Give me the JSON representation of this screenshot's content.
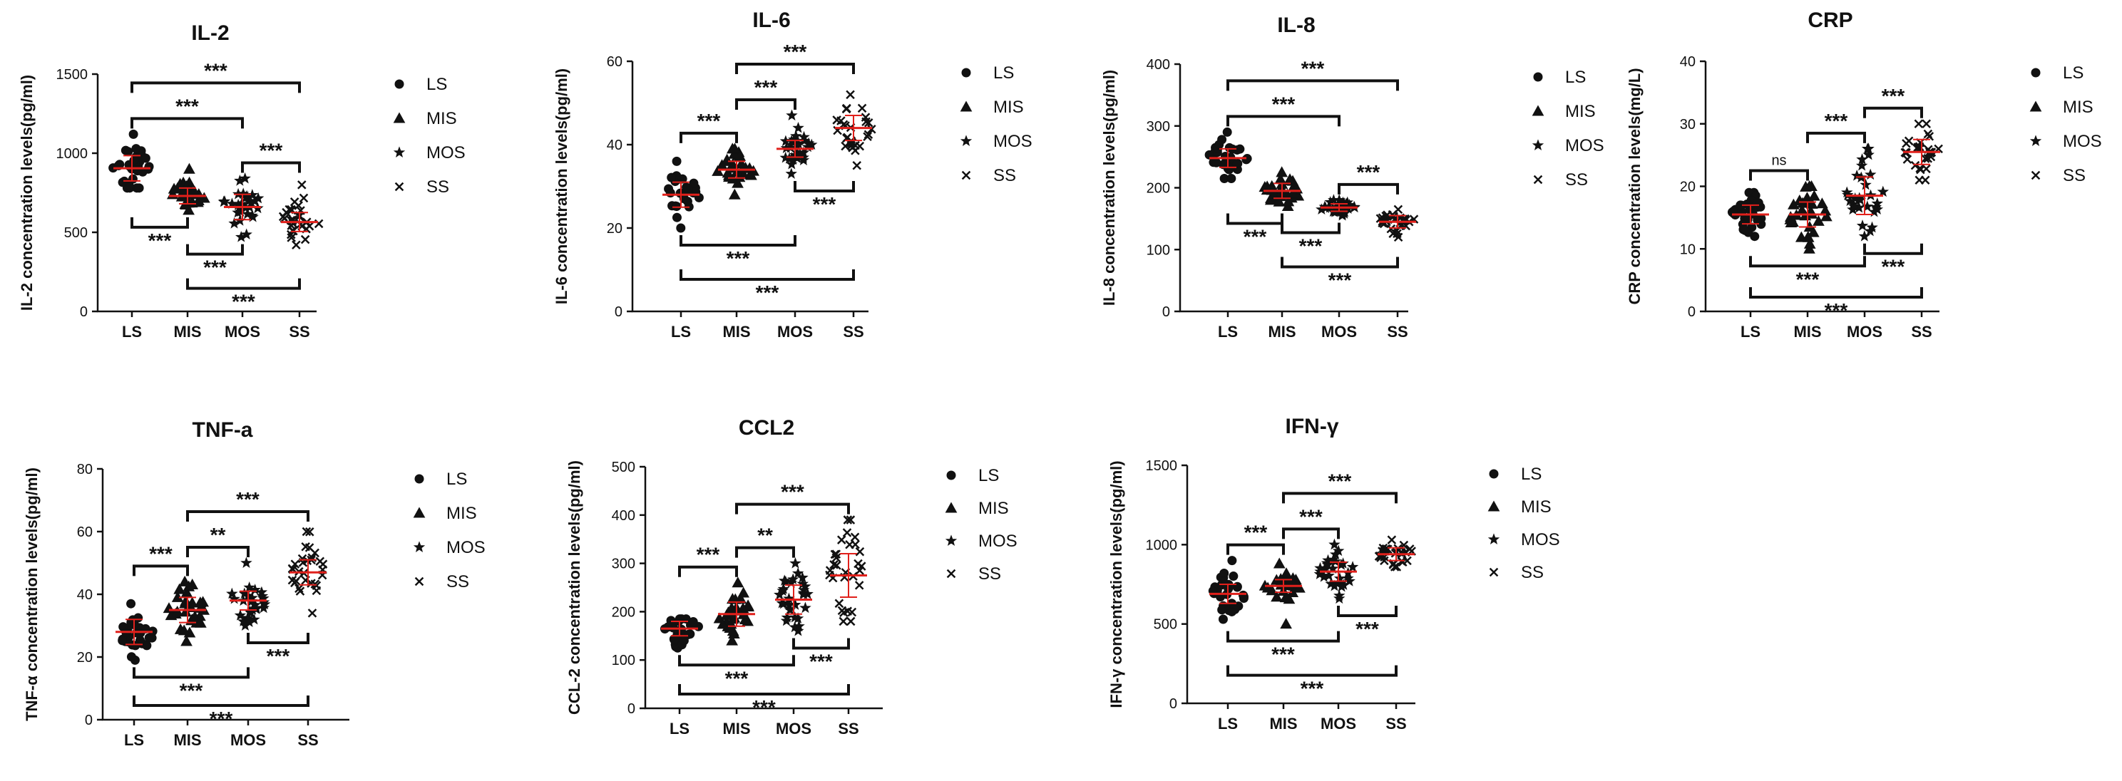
{
  "legend_labels": [
    "LS",
    "MIS",
    "MOS",
    "SS"
  ],
  "colors": {
    "points": "#111111",
    "mean": "#e0201b"
  },
  "chart_data": [
    {
      "type": "scatter",
      "title": "IL-2",
      "ylabel": "IL-2 concentration levels(pg/ml)",
      "categories": [
        "LS",
        "MIS",
        "MOS",
        "SS"
      ],
      "ylim": [
        0,
        1500
      ],
      "yticks": [
        0,
        500,
        1000,
        1500
      ],
      "markers": [
        "circle",
        "triangle",
        "star",
        "cross"
      ],
      "series": [
        {
          "name": "LS",
          "mean": 905,
          "sd": 80,
          "n": 30,
          "min": 780,
          "max": 1120
        },
        {
          "name": "MIS",
          "mean": 730,
          "sd": 50,
          "n": 30,
          "min": 640,
          "max": 900
        },
        {
          "name": "MOS",
          "mean": 660,
          "sd": 80,
          "n": 30,
          "min": 470,
          "max": 840
        },
        {
          "name": "SS",
          "mean": 565,
          "sd": 60,
          "n": 30,
          "min": 420,
          "max": 800
        }
      ],
      "comparisons": [
        {
          "from": 0,
          "to": 3,
          "label": "***",
          "side": "top"
        },
        {
          "from": 0,
          "to": 2,
          "label": "***",
          "side": "top"
        },
        {
          "from": 2,
          "to": 3,
          "label": "***",
          "side": "top"
        },
        {
          "from": 0,
          "to": 1,
          "label": "***",
          "side": "bottom"
        },
        {
          "from": 1,
          "to": 2,
          "label": "***",
          "side": "bottom"
        },
        {
          "from": 1,
          "to": 3,
          "label": "***",
          "side": "bottom"
        }
      ]
    },
    {
      "type": "scatter",
      "title": "IL-6",
      "ylabel": "IL-6 concentration levels(pg/ml)",
      "categories": [
        "LS",
        "MIS",
        "MOS",
        "SS"
      ],
      "ylim": [
        0,
        60
      ],
      "yticks": [
        0,
        20,
        40,
        60
      ],
      "markers": [
        "circle",
        "triangle",
        "star",
        "cross"
      ],
      "series": [
        {
          "name": "LS",
          "mean": 28,
          "sd": 3,
          "n": 30,
          "min": 20,
          "max": 36
        },
        {
          "name": "MIS",
          "mean": 34,
          "sd": 2,
          "n": 30,
          "min": 28,
          "max": 39
        },
        {
          "name": "MOS",
          "mean": 39,
          "sd": 2,
          "n": 30,
          "min": 33,
          "max": 47
        },
        {
          "name": "SS",
          "mean": 44,
          "sd": 3,
          "n": 30,
          "min": 35,
          "max": 52
        }
      ],
      "comparisons": [
        {
          "from": 0,
          "to": 1,
          "label": "***",
          "side": "top"
        },
        {
          "from": 1,
          "to": 2,
          "label": "***",
          "side": "top"
        },
        {
          "from": 1,
          "to": 3,
          "label": "***",
          "side": "top"
        },
        {
          "from": 2,
          "to": 3,
          "label": "***",
          "side": "bottom"
        },
        {
          "from": 0,
          "to": 2,
          "label": "***",
          "side": "bottom"
        },
        {
          "from": 0,
          "to": 3,
          "label": "***",
          "side": "bottom"
        }
      ]
    },
    {
      "type": "scatter",
      "title": "IL-8",
      "ylabel": "IL-8 concentration levels(pg/ml)",
      "categories": [
        "LS",
        "MIS",
        "MOS",
        "SS"
      ],
      "ylim": [
        0,
        400
      ],
      "yticks": [
        0,
        100,
        200,
        300,
        400
      ],
      "markers": [
        "circle",
        "triangle",
        "star",
        "cross"
      ],
      "series": [
        {
          "name": "LS",
          "mean": 248,
          "sd": 15,
          "n": 30,
          "min": 215,
          "max": 290
        },
        {
          "name": "MIS",
          "mean": 195,
          "sd": 12,
          "n": 30,
          "min": 170,
          "max": 225
        },
        {
          "name": "MOS",
          "mean": 168,
          "sd": 6,
          "n": 30,
          "min": 155,
          "max": 180
        },
        {
          "name": "SS",
          "mean": 145,
          "sd": 10,
          "n": 30,
          "min": 120,
          "max": 165
        }
      ],
      "comparisons": [
        {
          "from": 0,
          "to": 3,
          "label": "***",
          "side": "top"
        },
        {
          "from": 0,
          "to": 2,
          "label": "***",
          "side": "top"
        },
        {
          "from": 2,
          "to": 3,
          "label": "***",
          "side": "top"
        },
        {
          "from": 0,
          "to": 1,
          "label": "***",
          "side": "bottom"
        },
        {
          "from": 1,
          "to": 2,
          "label": "***",
          "side": "bottom"
        },
        {
          "from": 1,
          "to": 3,
          "label": "***",
          "side": "bottom"
        }
      ]
    },
    {
      "type": "scatter",
      "title": "CRP",
      "ylabel": "CRP concentration levels(mg/L)",
      "categories": [
        "LS",
        "MIS",
        "MOS",
        "SS"
      ],
      "ylim": [
        0,
        40
      ],
      "yticks": [
        0,
        10,
        20,
        30,
        40
      ],
      "markers": [
        "circle",
        "triangle",
        "star",
        "cross"
      ],
      "series": [
        {
          "name": "LS",
          "mean": 15.5,
          "sd": 1.5,
          "n": 30,
          "min": 12,
          "max": 19
        },
        {
          "name": "MIS",
          "mean": 15.5,
          "sd": 2,
          "n": 30,
          "min": 10,
          "max": 20
        },
        {
          "name": "MOS",
          "mean": 18.5,
          "sd": 3,
          "n": 30,
          "min": 12,
          "max": 26
        },
        {
          "name": "SS",
          "mean": 25.5,
          "sd": 2,
          "n": 30,
          "min": 21,
          "max": 30
        }
      ],
      "comparisons": [
        {
          "from": 0,
          "to": 1,
          "label": "ns",
          "side": "top"
        },
        {
          "from": 1,
          "to": 2,
          "label": "***",
          "side": "top"
        },
        {
          "from": 2,
          "to": 3,
          "label": "***",
          "side": "top"
        },
        {
          "from": 0,
          "to": 2,
          "label": "***",
          "side": "bottom"
        },
        {
          "from": 2,
          "to": 3,
          "label": "***",
          "side": "bottom"
        },
        {
          "from": 0,
          "to": 3,
          "label": "***",
          "side": "bottom"
        }
      ]
    },
    {
      "type": "scatter",
      "title": "TNF-a",
      "ylabel": "TNF-α concentration levels(pg/ml)",
      "categories": [
        "LS",
        "MIS",
        "MOS",
        "SS"
      ],
      "ylim": [
        0,
        80
      ],
      "yticks": [
        0,
        20,
        40,
        60,
        80
      ],
      "markers": [
        "circle",
        "triangle",
        "star",
        "cross"
      ],
      "series": [
        {
          "name": "LS",
          "mean": 28,
          "sd": 4,
          "n": 30,
          "min": 19,
          "max": 37
        },
        {
          "name": "MIS",
          "mean": 35,
          "sd": 4,
          "n": 30,
          "min": 25,
          "max": 44
        },
        {
          "name": "MOS",
          "mean": 38,
          "sd": 3,
          "n": 30,
          "min": 30,
          "max": 50
        },
        {
          "name": "SS",
          "mean": 47,
          "sd": 4,
          "n": 30,
          "min": 34,
          "max": 60
        }
      ],
      "comparisons": [
        {
          "from": 0,
          "to": 1,
          "label": "***",
          "side": "top"
        },
        {
          "from": 1,
          "to": 2,
          "label": "**",
          "side": "top"
        },
        {
          "from": 1,
          "to": 3,
          "label": "***",
          "side": "top"
        },
        {
          "from": 2,
          "to": 3,
          "label": "***",
          "side": "bottom"
        },
        {
          "from": 0,
          "to": 2,
          "label": "***",
          "side": "bottom"
        },
        {
          "from": 0,
          "to": 3,
          "label": "***",
          "side": "bottom"
        }
      ]
    },
    {
      "type": "scatter",
      "title": "CCL2",
      "ylabel": "CCL-2 concentration levels(pg/ml)",
      "categories": [
        "LS",
        "MIS",
        "MOS",
        "SS"
      ],
      "ylim": [
        0,
        500
      ],
      "yticks": [
        0,
        100,
        200,
        300,
        400,
        500
      ],
      "markers": [
        "circle",
        "triangle",
        "star",
        "cross"
      ],
      "series": [
        {
          "name": "LS",
          "mean": 165,
          "sd": 15,
          "n": 30,
          "min": 125,
          "max": 185
        },
        {
          "name": "MIS",
          "mean": 195,
          "sd": 25,
          "n": 30,
          "min": 140,
          "max": 260
        },
        {
          "name": "MOS",
          "mean": 225,
          "sd": 30,
          "n": 30,
          "min": 160,
          "max": 300
        },
        {
          "name": "SS",
          "mean": 275,
          "sd": 45,
          "n": 30,
          "min": 180,
          "max": 390
        }
      ],
      "comparisons": [
        {
          "from": 0,
          "to": 1,
          "label": "***",
          "side": "top"
        },
        {
          "from": 1,
          "to": 2,
          "label": "**",
          "side": "top"
        },
        {
          "from": 1,
          "to": 3,
          "label": "***",
          "side": "top"
        },
        {
          "from": 2,
          "to": 3,
          "label": "***",
          "side": "bottom"
        },
        {
          "from": 0,
          "to": 2,
          "label": "***",
          "side": "bottom"
        },
        {
          "from": 0,
          "to": 3,
          "label": "***",
          "side": "bottom"
        }
      ]
    },
    {
      "type": "scatter",
      "title": "IFN-γ",
      "ylabel": "IFN-γ concentration levels(pg/ml)",
      "categories": [
        "LS",
        "MIS",
        "MOS",
        "SS"
      ],
      "ylim": [
        0,
        1500
      ],
      "yticks": [
        0,
        500,
        1000,
        1500
      ],
      "markers": [
        "circle",
        "triangle",
        "star",
        "cross"
      ],
      "series": [
        {
          "name": "LS",
          "mean": 690,
          "sd": 60,
          "n": 30,
          "min": 530,
          "max": 900
        },
        {
          "name": "MIS",
          "mean": 740,
          "sd": 40,
          "n": 30,
          "min": 500,
          "max": 880
        },
        {
          "name": "MOS",
          "mean": 830,
          "sd": 60,
          "n": 30,
          "min": 660,
          "max": 1000
        },
        {
          "name": "SS",
          "mean": 940,
          "sd": 40,
          "n": 30,
          "min": 860,
          "max": 1030
        }
      ],
      "comparisons": [
        {
          "from": 0,
          "to": 1,
          "label": "***",
          "side": "top"
        },
        {
          "from": 1,
          "to": 2,
          "label": "***",
          "side": "top"
        },
        {
          "from": 1,
          "to": 3,
          "label": "***",
          "side": "top"
        },
        {
          "from": 2,
          "to": 3,
          "label": "***",
          "side": "bottom"
        },
        {
          "from": 0,
          "to": 2,
          "label": "***",
          "side": "bottom"
        },
        {
          "from": 0,
          "to": 3,
          "label": "***",
          "side": "bottom"
        }
      ]
    }
  ]
}
